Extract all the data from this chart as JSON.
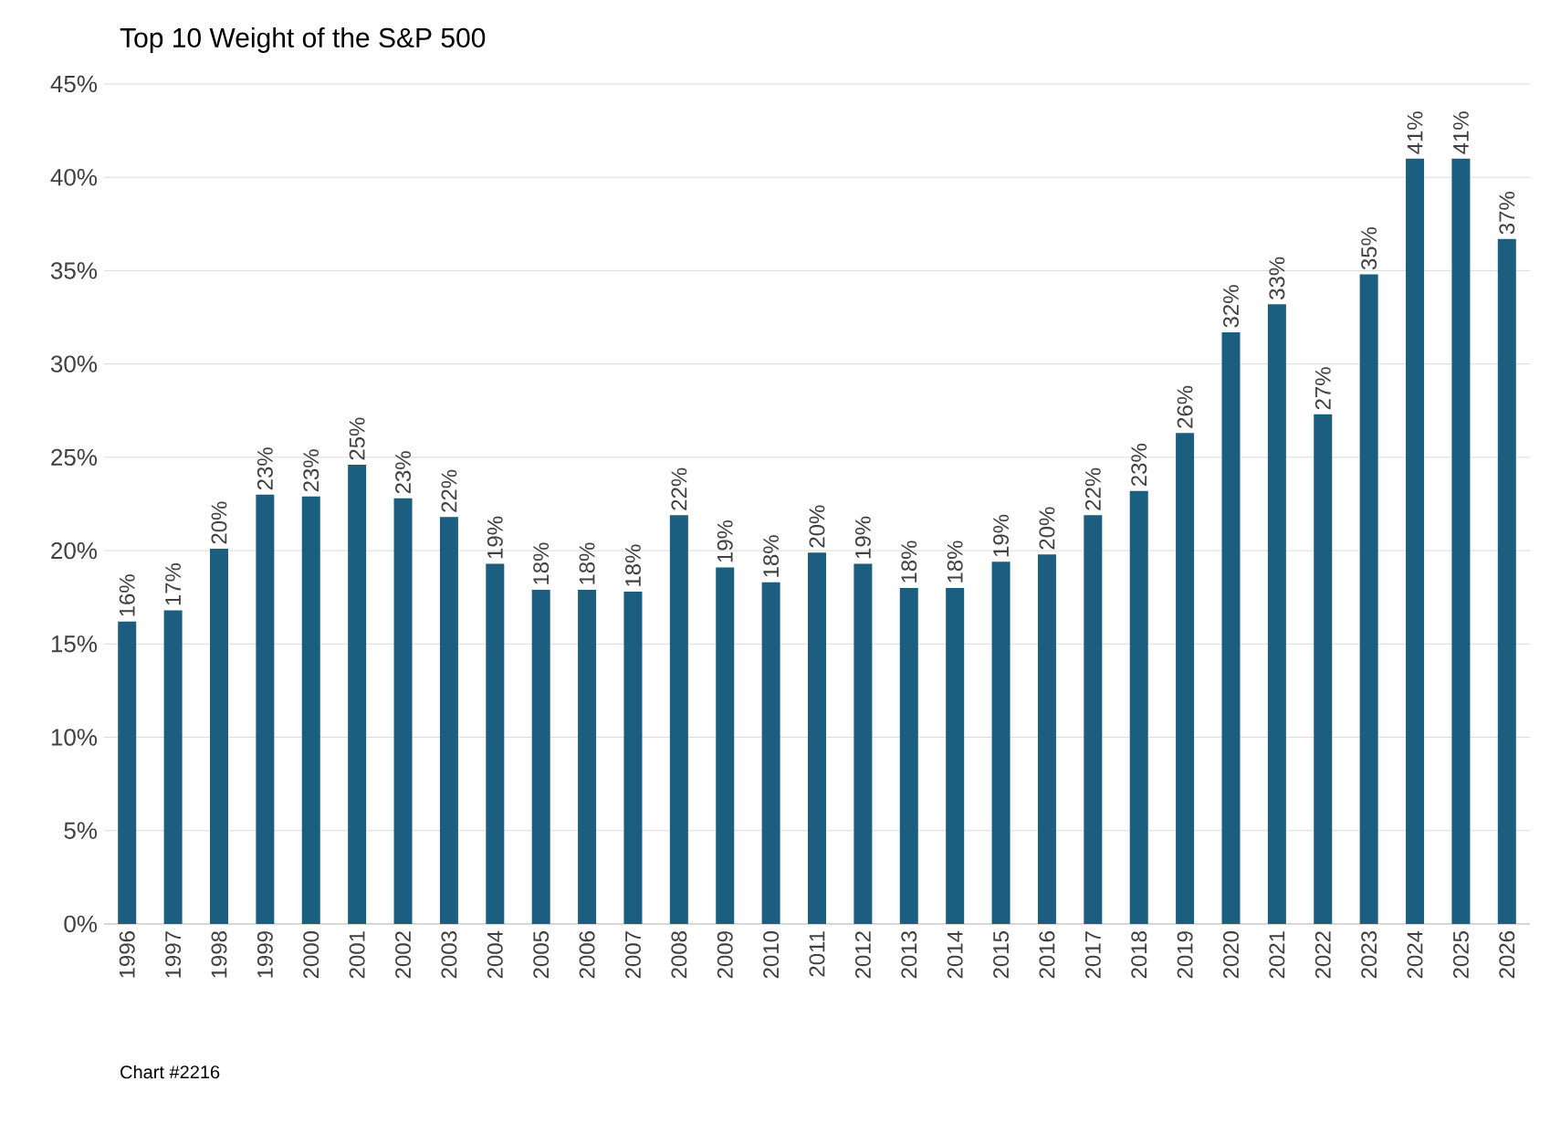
{
  "chart_data": {
    "type": "bar",
    "title": "Top 10 Weight of the S&P 500",
    "categories": [
      "1996",
      "1997",
      "1998",
      "1999",
      "2000",
      "2001",
      "2002",
      "2003",
      "2004",
      "2005",
      "2006",
      "2007",
      "2008",
      "2009",
      "2010",
      "2011",
      "2012",
      "2013",
      "2014",
      "2015",
      "2016",
      "2017",
      "2018",
      "2019",
      "2020",
      "2021",
      "2022",
      "2023",
      "2024",
      "2025",
      "2026"
    ],
    "values": [
      16.2,
      16.8,
      20.1,
      23.0,
      22.9,
      24.6,
      22.8,
      21.8,
      19.3,
      17.9,
      17.9,
      17.8,
      21.9,
      19.1,
      18.3,
      19.9,
      19.3,
      18.0,
      18.0,
      19.4,
      19.8,
      21.9,
      23.2,
      26.3,
      31.7,
      33.2,
      27.3,
      34.8,
      41.0,
      41.0,
      36.7
    ],
    "value_labels": [
      "16%",
      "17%",
      "20%",
      "23%",
      "23%",
      "25%",
      "23%",
      "22%",
      "19%",
      "18%",
      "18%",
      "18%",
      "22%",
      "19%",
      "18%",
      "20%",
      "19%",
      "18%",
      "18%",
      "19%",
      "20%",
      "22%",
      "23%",
      "26%",
      "32%",
      "33%",
      "27%",
      "35%",
      "41%",
      "41%",
      "37%"
    ],
    "color": "#1b5e7f",
    "ylim": [
      0,
      45
    ],
    "yticks": [
      {
        "value": 0,
        "label": "0%"
      },
      {
        "value": 5,
        "label": "5%"
      },
      {
        "value": 10,
        "label": "10%"
      },
      {
        "value": 15,
        "label": "15%"
      },
      {
        "value": 20,
        "label": "20%"
      },
      {
        "value": 25,
        "label": "25%"
      },
      {
        "value": 30,
        "label": "30%"
      },
      {
        "value": 35,
        "label": "35%"
      },
      {
        "value": 40,
        "label": "40%"
      },
      {
        "value": 45,
        "label": "45%"
      }
    ],
    "grid": "y",
    "annotations": [
      "Chart #2216"
    ]
  }
}
